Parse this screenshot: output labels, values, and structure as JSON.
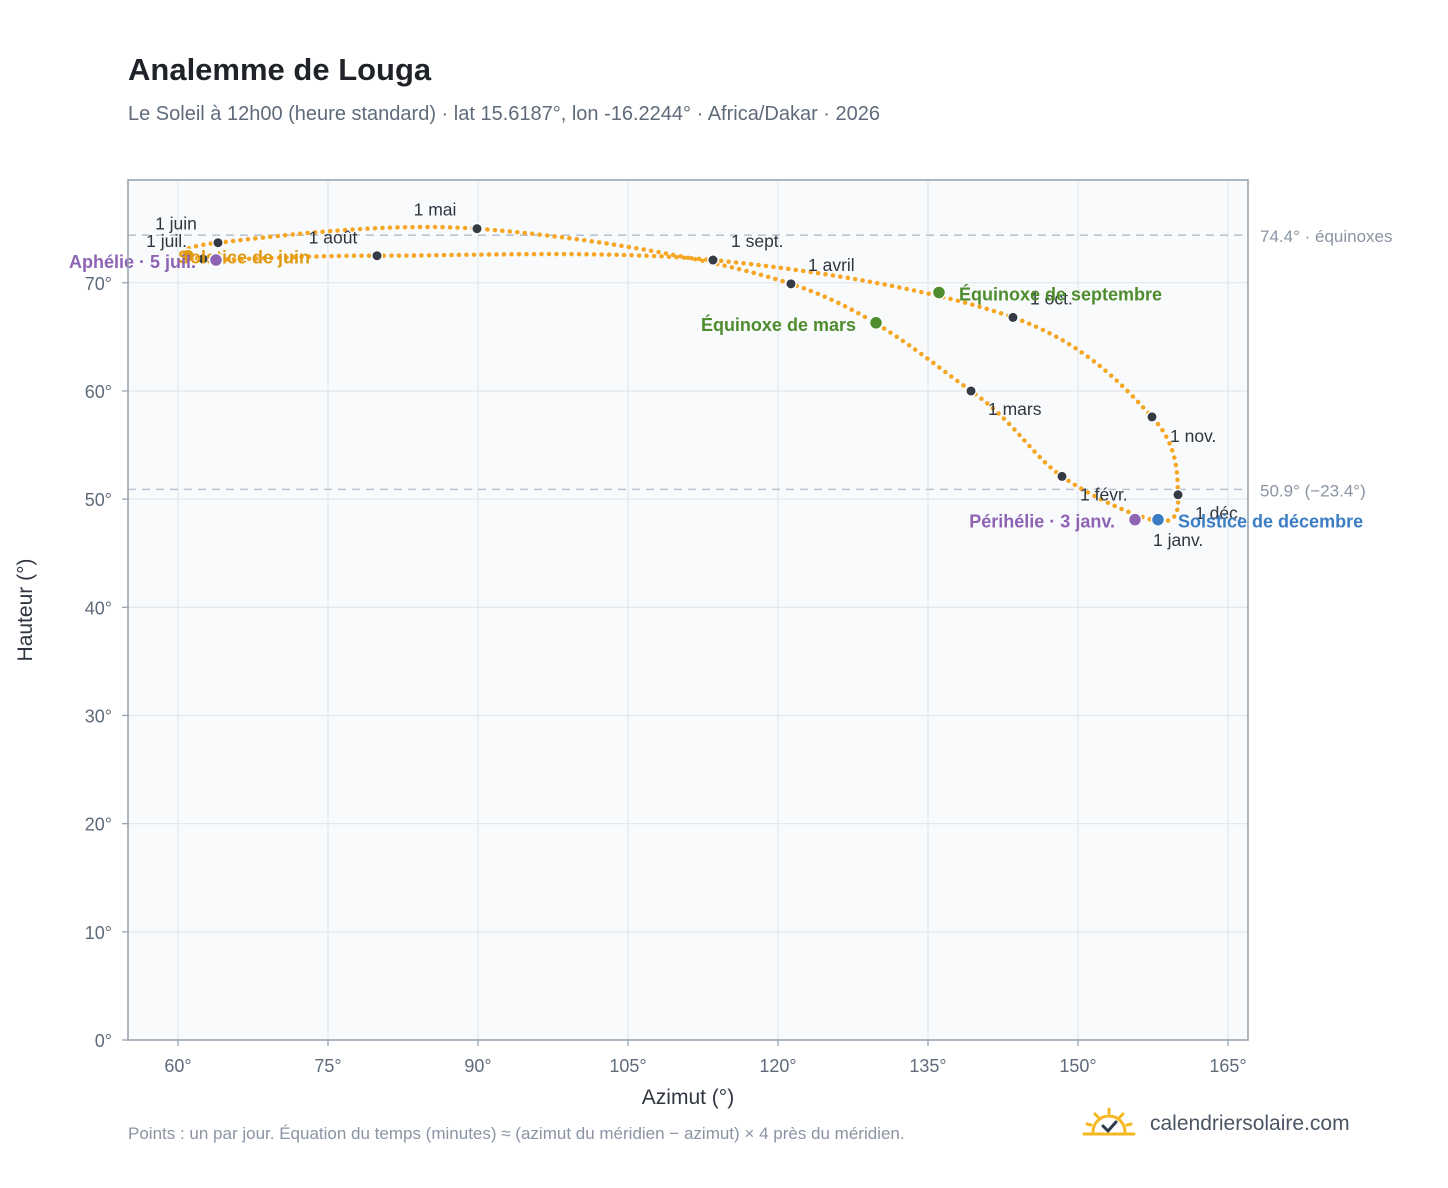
{
  "header": {
    "title": "Analemme de Louga",
    "subtitle": "Le Soleil à 12h00 (heure standard) · lat 15.6187°, lon -16.2244° · Africa/Dakar · 2026"
  },
  "footer": {
    "note": "Points : un par jour. Équation du temps (minutes) ≈ (azimut du méridien − azimut) × 4 près du méridien.",
    "brand": "calendriersolaire.com",
    "brand_icon": "sun-check-icon"
  },
  "colors": {
    "curve": "#f5a623",
    "month_marker": "#353b45",
    "equinox": "#4e8c2e",
    "solstice_june": "#e19a0e",
    "solstice_december": "#3b7dc4",
    "apsis": "#8e63b3",
    "reference_line": "#bcc5cf",
    "grid": "#e4e8ee",
    "plot_background": "#f8fafc",
    "frame": "#9aa5b1"
  },
  "chart_data": {
    "type": "scatter",
    "xlabel": "Azimut (°)",
    "ylabel": "Hauteur (°)",
    "xlim": [
      55,
      167
    ],
    "ylim": [
      0,
      79.5
    ],
    "x_ticks": [
      60,
      75,
      90,
      105,
      120,
      135,
      150,
      165
    ],
    "x_tick_labels": [
      "60°",
      "75°",
      "90°",
      "105°",
      "120°",
      "135°",
      "150°",
      "165°"
    ],
    "y_ticks": [
      0,
      10,
      20,
      30,
      40,
      50,
      60,
      70
    ],
    "y_tick_labels": [
      "0°",
      "10°",
      "20°",
      "30°",
      "40°",
      "50°",
      "60°",
      "70°"
    ],
    "grid": true,
    "reference_lines": [
      {
        "y": 74.4,
        "label": "74.4° · équinoxes"
      },
      {
        "y": 50.9,
        "label": "50.9° (−23.4°)"
      }
    ],
    "month_markers": [
      {
        "label": "1 janv.",
        "azimuth": 157.9,
        "altitude": 48.0
      },
      {
        "label": "1 févr.",
        "azimuth": 148.4,
        "altitude": 52.1
      },
      {
        "label": "1 mars",
        "azimuth": 139.3,
        "altitude": 60.0
      },
      {
        "label": "1 avril",
        "azimuth": 121.3,
        "altitude": 69.9
      },
      {
        "label": "1 mai",
        "azimuth": 89.9,
        "altitude": 75.0
      },
      {
        "label": "1 juin",
        "azimuth": 64.0,
        "altitude": 73.7
      },
      {
        "label": "1 juil.",
        "azimuth": 62.5,
        "altitude": 72.2
      },
      {
        "label": "1 août",
        "azimuth": 79.9,
        "altitude": 72.5
      },
      {
        "label": "1 sept.",
        "azimuth": 113.5,
        "altitude": 72.1
      },
      {
        "label": "1 oct.",
        "azimuth": 143.5,
        "altitude": 66.8
      },
      {
        "label": "1 nov.",
        "azimuth": 157.4,
        "altitude": 57.6
      },
      {
        "label": "1 déc.",
        "azimuth": 160.0,
        "altitude": 50.4
      }
    ],
    "events": [
      {
        "label": "Équinoxe de mars",
        "azimuth": 129.8,
        "altitude": 66.3,
        "kind": "equinox"
      },
      {
        "label": "Équinoxe de septembre",
        "azimuth": 136.1,
        "altitude": 69.1,
        "kind": "equinox"
      },
      {
        "label": "Solstice de juin",
        "azimuth": 61.0,
        "altitude": 72.5,
        "kind": "solstice_june"
      },
      {
        "label": "Solstice de décembre",
        "azimuth": 158.0,
        "altitude": 48.1,
        "kind": "solstice_december"
      },
      {
        "label": "Aphélie · 5 juil.",
        "azimuth": 63.8,
        "altitude": 72.1,
        "kind": "apsis"
      },
      {
        "label": "Périhélie · 3 janv.",
        "azimuth": 155.7,
        "altitude": 48.1,
        "kind": "apsis"
      }
    ]
  }
}
